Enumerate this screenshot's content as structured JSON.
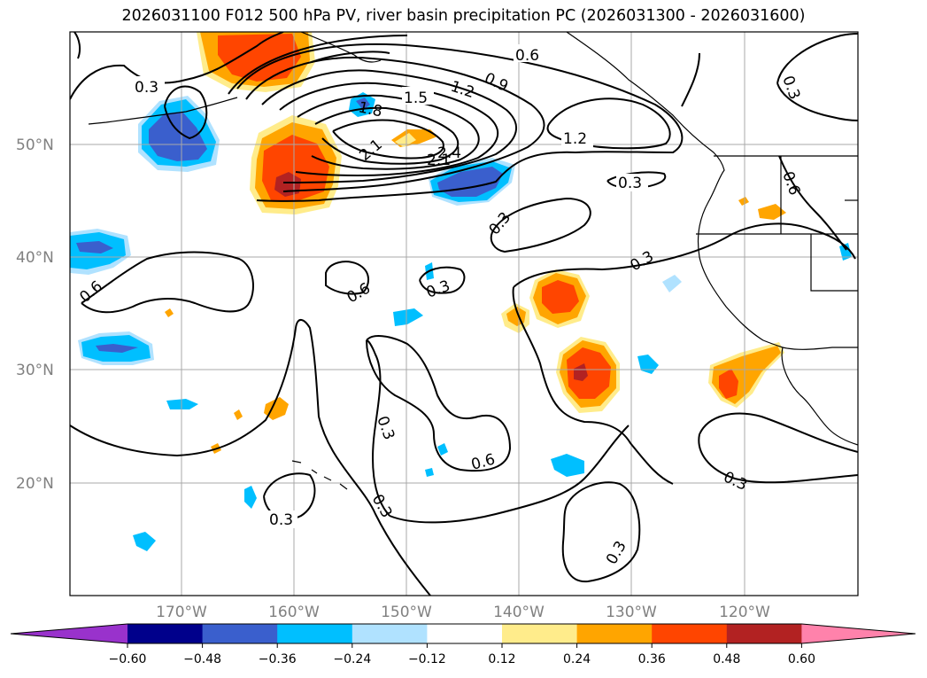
{
  "title": "2026031100 F012 500 hPa PV, river basin precipitation PC (2026031300 - 2026031600)",
  "map": {
    "lat_labels": [
      "50°N",
      "40°N",
      "30°N",
      "20°N"
    ],
    "lon_labels": [
      "170°W",
      "160°W",
      "150°W",
      "140°W",
      "130°W",
      "120°W"
    ],
    "contour_labels": [
      "0.3",
      "0.6",
      "0.9",
      "1.2",
      "1.5",
      "1.8",
      "2.1",
      "2.4"
    ]
  },
  "colorbar": {
    "tick_labels": [
      "−0.60",
      "−0.48",
      "−0.36",
      "−0.24",
      "−0.12",
      "0.12",
      "0.24",
      "0.36",
      "0.48",
      "0.60"
    ],
    "colors": [
      "#9932cc",
      "#00008b",
      "#3a5fcd",
      "#00bfff",
      "#b0e2ff",
      "#ffffff",
      "#ffec8b",
      "#ffa500",
      "#ff4500",
      "#b22222",
      "#ff82ab"
    ]
  },
  "colors": {
    "red_dark": "#b22222",
    "red": "#ff4500",
    "orange": "#ffa500",
    "yellow": "#ffec8b",
    "blue_dark": "#3a5fcd",
    "blue": "#00bfff",
    "blue_light": "#b0e2ff",
    "grid": "#a9a9a9"
  }
}
